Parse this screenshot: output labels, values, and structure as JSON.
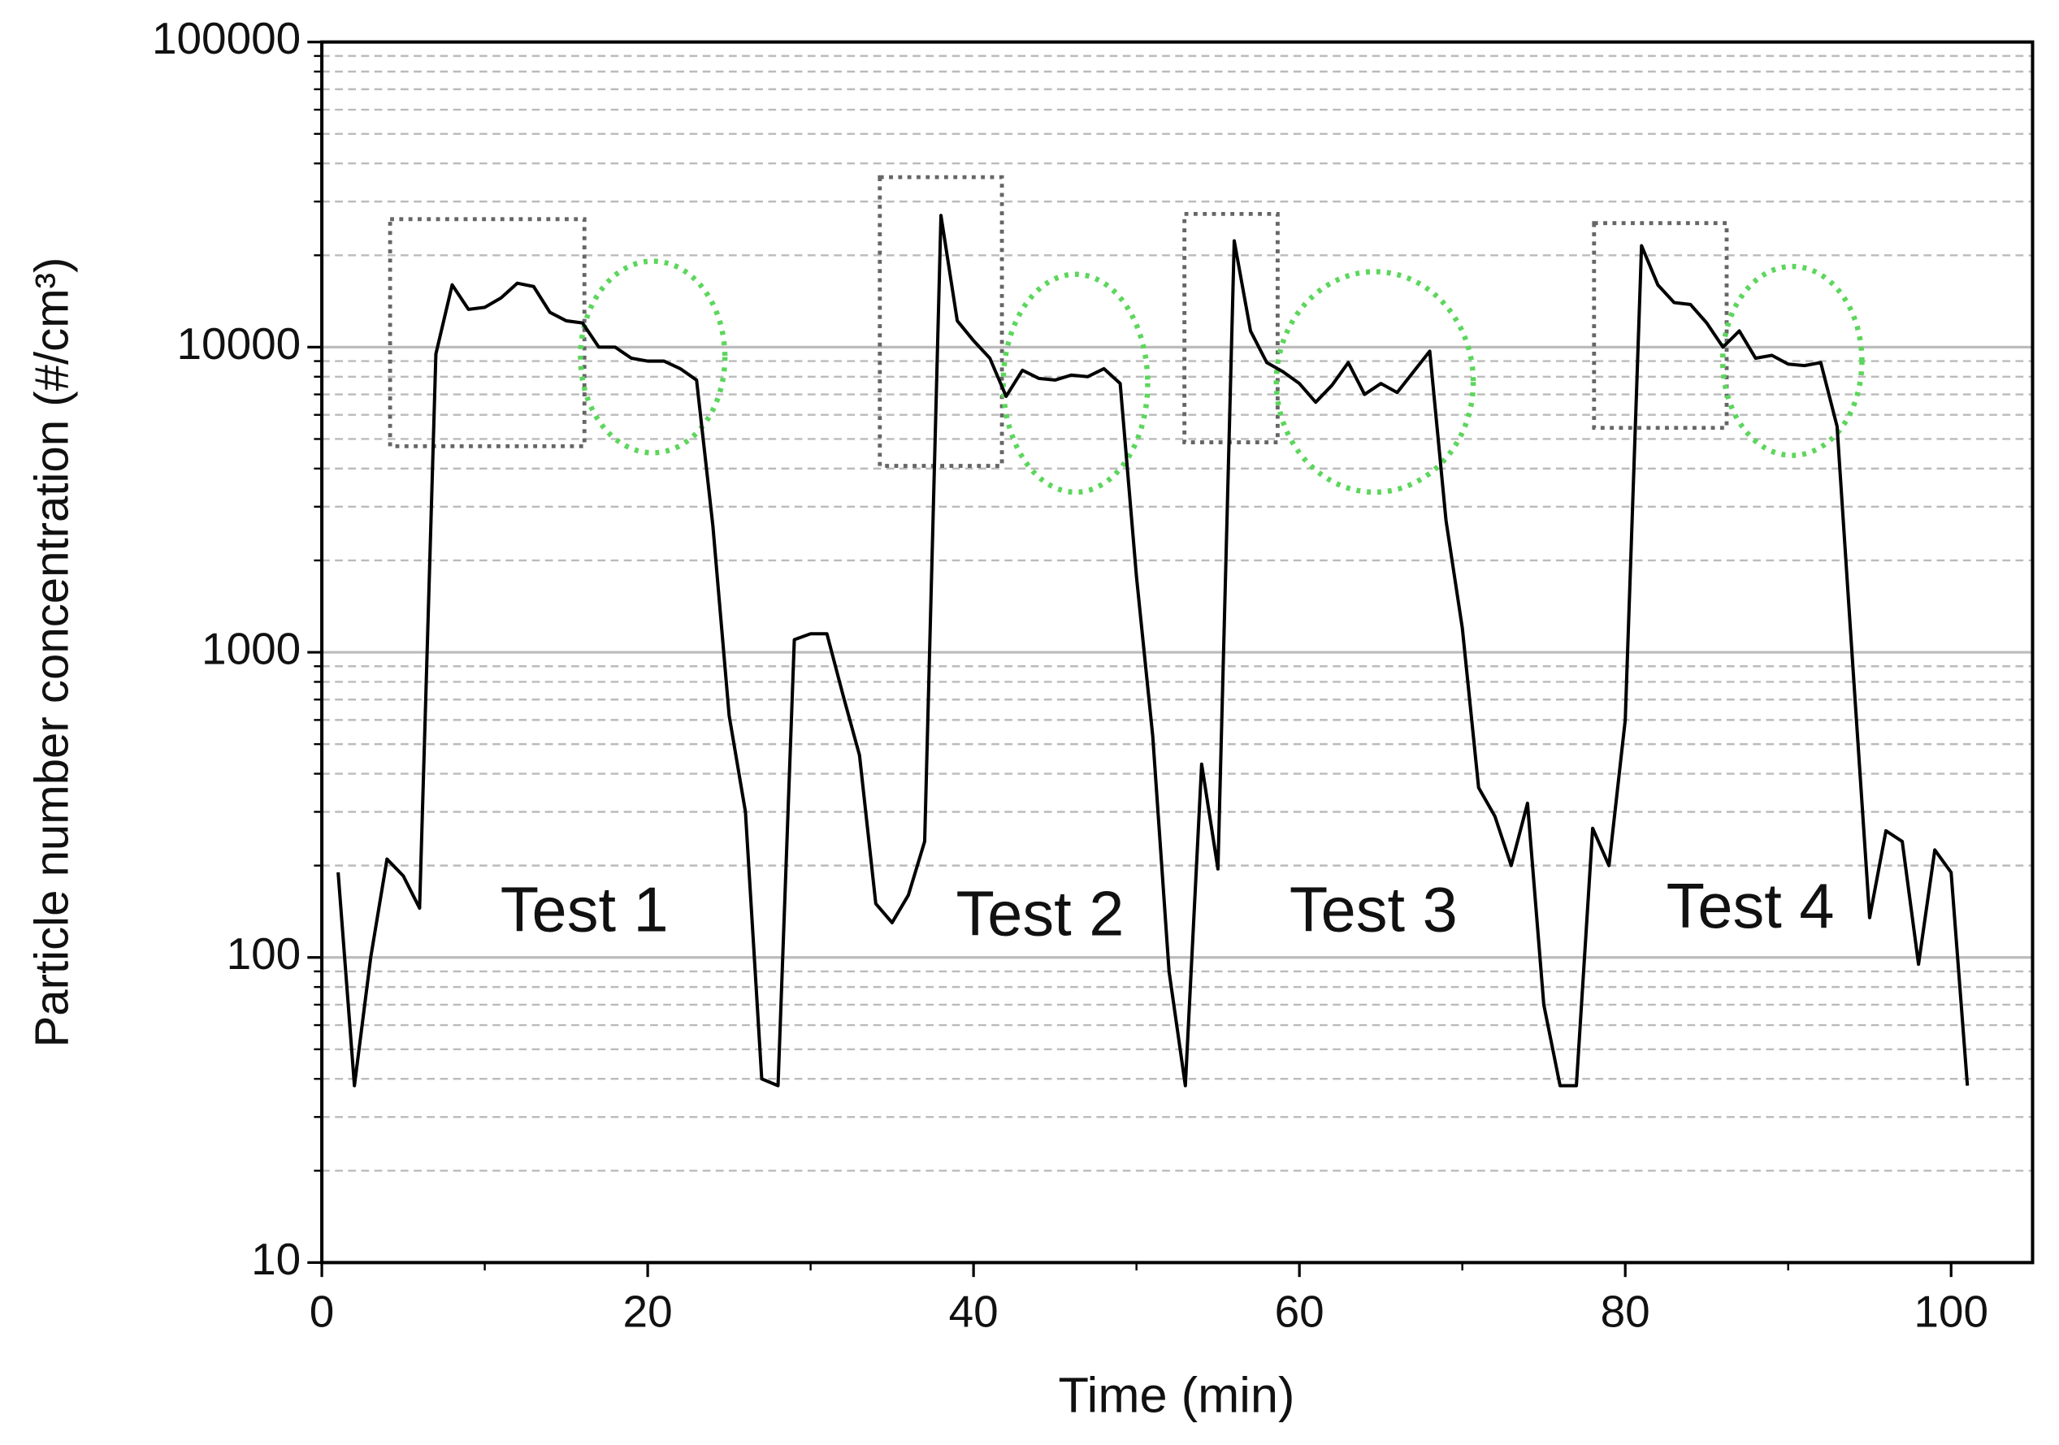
{
  "chart_data": {
    "type": "line",
    "xlabel": "Time (min)",
    "ylabel": "Particle number concentration (#/cm³)",
    "annotations": [
      "Test 1",
      "Test 2",
      "Test 3",
      "Test 4"
    ],
    "x": [
      1,
      2,
      3,
      4,
      5,
      6,
      7,
      8,
      9,
      10,
      11,
      12,
      13,
      14,
      15,
      16,
      17,
      18,
      19,
      20,
      21,
      22,
      23,
      24,
      25,
      26,
      27,
      28,
      29,
      30,
      31,
      32,
      33,
      34,
      35,
      36,
      37,
      38,
      39,
      40,
      41,
      42,
      43,
      44,
      45,
      46,
      47,
      48,
      49,
      50,
      51,
      52,
      53,
      54,
      55,
      56,
      57,
      58,
      59,
      60,
      61,
      62,
      63,
      64,
      65,
      66,
      67,
      68,
      69,
      70,
      71,
      72,
      73,
      74,
      75,
      76,
      77,
      78,
      79,
      80,
      81,
      82,
      83,
      84,
      85,
      86,
      87,
      88,
      89,
      90,
      91,
      92,
      93,
      94,
      95,
      96,
      97,
      98,
      99,
      100,
      101
    ],
    "series": [
      {
        "name": "Particle number concentration",
        "color": "#000000",
        "values": [
          190,
          38,
          100,
          210,
          185,
          145,
          9500,
          16000,
          13300,
          13500,
          14500,
          16200,
          15800,
          13000,
          12200,
          12000,
          10000,
          10000,
          9200,
          9000,
          9000,
          8500,
          7800,
          2600,
          620,
          300,
          40,
          38,
          1100,
          1150,
          1150,
          720,
          460,
          150,
          130,
          160,
          240,
          27000,
          12200,
          10500,
          9200,
          6900,
          8400,
          7900,
          7800,
          8100,
          8000,
          8500,
          7600,
          1770,
          530,
          90,
          38,
          430,
          195,
          22300,
          11300,
          8900,
          8300,
          7600,
          6600,
          7500,
          8900,
          7000,
          7600,
          7100,
          8300,
          9700,
          2700,
          1200,
          360,
          290,
          200,
          320,
          70,
          38,
          38,
          265,
          200,
          600,
          21500,
          16000,
          14000,
          13800,
          12000,
          10000,
          11300,
          9200,
          9400,
          8800,
          8700,
          8900,
          5500,
          850,
          135,
          260,
          240,
          95,
          225,
          190,
          38
        ]
      }
    ],
    "xlim": [
      0,
      105
    ],
    "xticks": [
      0,
      20,
      40,
      60,
      80,
      100
    ],
    "ylim": [
      10,
      100000
    ],
    "yticks": [
      10,
      100,
      1000,
      10000,
      100000
    ],
    "yscale": "log",
    "grid": true
  }
}
